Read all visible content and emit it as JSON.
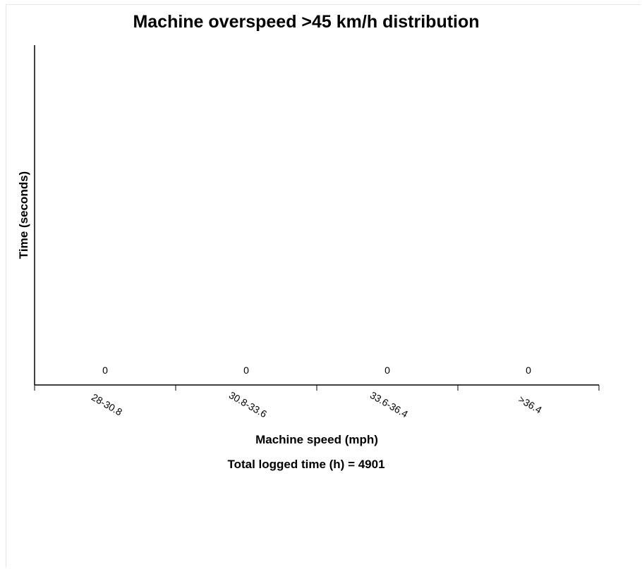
{
  "chart_data": {
    "type": "bar",
    "title": "Machine overspeed >45 km/h distribution",
    "xlabel": "Machine speed (mph)",
    "ylabel": "Time (seconds)",
    "categories": [
      "28-30.8",
      "30.8-33.6",
      "33.6-36.4",
      ">36.4"
    ],
    "values": [
      0,
      0,
      0,
      0
    ],
    "data_labels": [
      "0",
      "0",
      "0",
      "0"
    ],
    "footnote": "Total logged time (h) = 4901",
    "grid": false,
    "legend": "none",
    "bar_color": "#000000"
  }
}
